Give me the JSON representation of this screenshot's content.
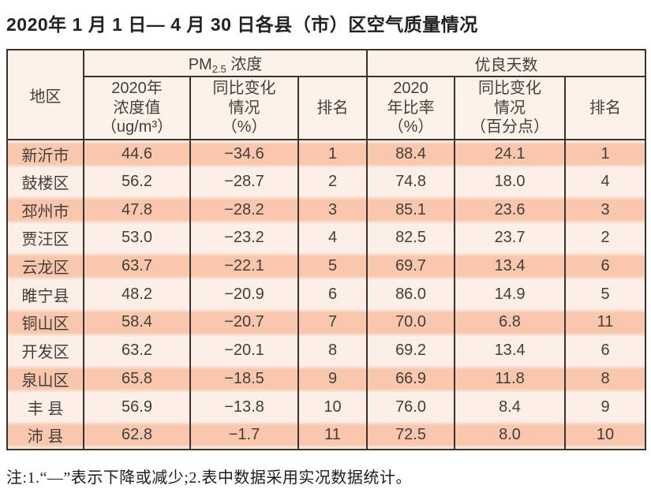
{
  "page": {
    "title": "2020年 1 月 1 日— 4 月 30 日各县（市）区空气质量情况",
    "footnote": "注:1.“—”表示下降或减少;2.表中数据采用实况数据统计。"
  },
  "colors": {
    "row_salmon": "#f8c7ae",
    "row_light": "#fbefe7",
    "header_bg": "#fdf2ea",
    "border": "#3a332d",
    "cell_text": "#453e38"
  },
  "table": {
    "corner_header": "地区",
    "group_pm25": {
      "main": "PM",
      "sub": "2.5",
      "rest": " 浓度"
    },
    "group_good_days": "优良天数",
    "sub_headers": [
      "2020年\n浓度值\n（ug/m³）",
      "同比变化\n情况\n（%）",
      "排名",
      "2020\n年比率\n（%）",
      "同比变化\n情况\n（百分点）",
      "排名"
    ],
    "rows": [
      {
        "region": "新沂市",
        "values": [
          "44.6",
          "−34.6",
          "1",
          "88.4",
          "24.1",
          "1"
        ]
      },
      {
        "region": "鼓楼区",
        "values": [
          "56.2",
          "−28.7",
          "2",
          "74.8",
          "18.0",
          "4"
        ]
      },
      {
        "region": "邳州市",
        "values": [
          "47.8",
          "−28.2",
          "3",
          "85.1",
          "23.6",
          "3"
        ]
      },
      {
        "region": "贾汪区",
        "values": [
          "53.0",
          "−23.2",
          "4",
          "82.5",
          "23.7",
          "2"
        ]
      },
      {
        "region": "云龙区",
        "values": [
          "63.7",
          "−22.1",
          "5",
          "69.7",
          "13.4",
          "6"
        ]
      },
      {
        "region": "睢宁县",
        "values": [
          "48.2",
          "−20.9",
          "6",
          "86.0",
          "14.9",
          "5"
        ]
      },
      {
        "region": "铜山区",
        "values": [
          "58.4",
          "−20.7",
          "7",
          "70.0",
          "6.8",
          "11"
        ]
      },
      {
        "region": "开发区",
        "values": [
          "63.2",
          "−20.1",
          "8",
          "69.2",
          "13.4",
          "6"
        ]
      },
      {
        "region": "泉山区",
        "values": [
          "65.8",
          "−18.5",
          "9",
          "66.9",
          "11.8",
          "8"
        ]
      },
      {
        "region": "丰 县",
        "values": [
          "56.9",
          "−13.8",
          "10",
          "76.0",
          "8.4",
          "9"
        ]
      },
      {
        "region": "沛 县",
        "values": [
          "62.8",
          "−1.7",
          "11",
          "72.5",
          "8.0",
          "10"
        ]
      }
    ]
  },
  "chart_data": {
    "type": "table",
    "title": "2020年1月1日—4月30日各县（市）区空气质量情况",
    "column_groups": [
      "地区",
      "PM2.5浓度",
      "优良天数"
    ],
    "columns": [
      "地区",
      "PM2.5浓度 2020年浓度值（ug/m³）",
      "PM2.5浓度 同比变化情况（%）",
      "PM2.5浓度 排名",
      "优良天数 2020年比率（%）",
      "优良天数 同比变化情况（百分点）",
      "优良天数 排名"
    ],
    "rows": [
      [
        "新沂市",
        44.6,
        -34.6,
        1,
        88.4,
        24.1,
        1
      ],
      [
        "鼓楼区",
        56.2,
        -28.7,
        2,
        74.8,
        18.0,
        4
      ],
      [
        "邳州市",
        47.8,
        -28.2,
        3,
        85.1,
        23.6,
        3
      ],
      [
        "贾汪区",
        53.0,
        -23.2,
        4,
        82.5,
        23.7,
        2
      ],
      [
        "云龙区",
        63.7,
        -22.1,
        5,
        69.7,
        13.4,
        6
      ],
      [
        "睢宁县",
        48.2,
        -20.9,
        6,
        86.0,
        14.9,
        5
      ],
      [
        "铜山区",
        58.4,
        -20.7,
        7,
        70.0,
        6.8,
        11
      ],
      [
        "开发区",
        63.2,
        -20.1,
        8,
        69.2,
        13.4,
        6
      ],
      [
        "泉山区",
        65.8,
        -18.5,
        9,
        66.9,
        11.8,
        8
      ],
      [
        "丰县",
        56.9,
        -13.8,
        10,
        76.0,
        8.4,
        9
      ],
      [
        "沛县",
        62.8,
        -1.7,
        11,
        72.5,
        8.0,
        10
      ]
    ],
    "notes": "注:1.“—”表示下降或减少;2.表中数据采用实况数据统计。"
  }
}
